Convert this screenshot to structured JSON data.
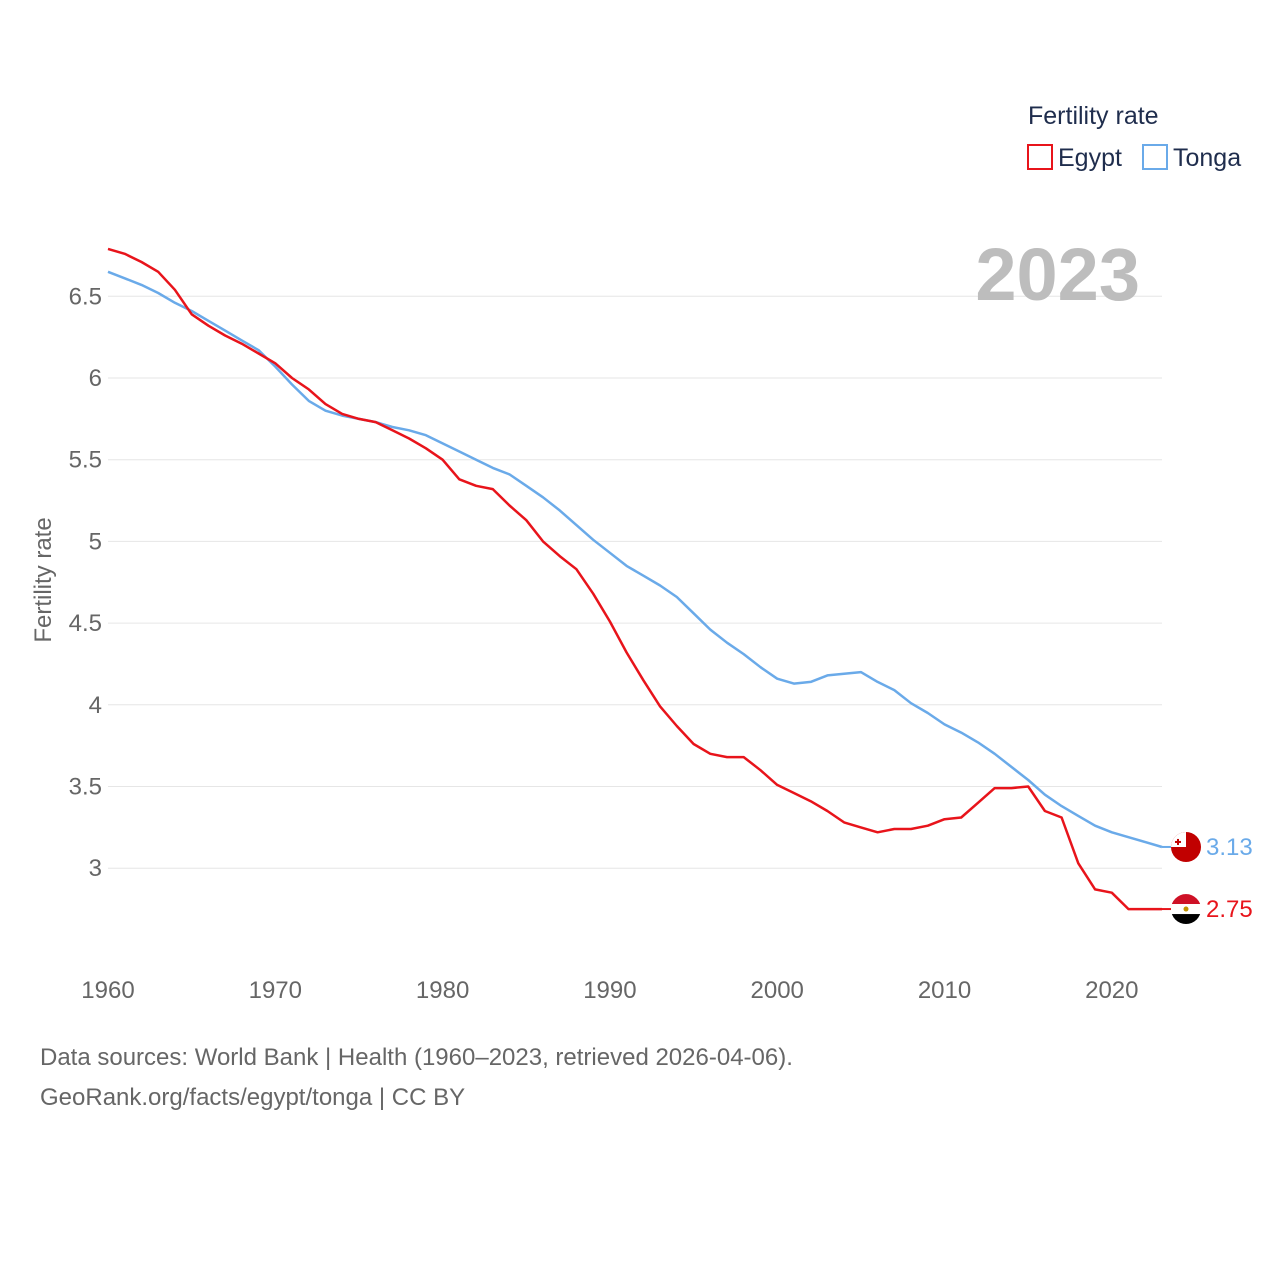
{
  "chart_data": {
    "type": "line",
    "legend_title": "Fertility rate",
    "ylabel": "Fertility rate",
    "xlabel": "",
    "year_label": "2023",
    "xlim": [
      1960,
      2023
    ],
    "ylim": [
      2.5,
      6.8
    ],
    "x_ticks": [
      1960,
      1970,
      1980,
      1990,
      2000,
      2010,
      2020
    ],
    "y_ticks": [
      3,
      3.5,
      4,
      4.5,
      5,
      5.5,
      6,
      6.5
    ],
    "y_tick_labels": [
      "3",
      "3.5",
      "4",
      "4.5",
      "5",
      "5.5",
      "6",
      "6.5"
    ],
    "x_tick_labels": [
      "1960",
      "1970",
      "1980",
      "1990",
      "2000",
      "2010",
      "2020"
    ],
    "years": [
      1960,
      1961,
      1962,
      1963,
      1964,
      1965,
      1966,
      1967,
      1968,
      1969,
      1970,
      1971,
      1972,
      1973,
      1974,
      1975,
      1976,
      1977,
      1978,
      1979,
      1980,
      1981,
      1982,
      1983,
      1984,
      1985,
      1986,
      1987,
      1988,
      1989,
      1990,
      1991,
      1992,
      1993,
      1994,
      1995,
      1996,
      1997,
      1998,
      1999,
      2000,
      2001,
      2002,
      2003,
      2004,
      2005,
      2006,
      2007,
      2008,
      2009,
      2010,
      2011,
      2012,
      2013,
      2014,
      2015,
      2016,
      2017,
      2018,
      2019,
      2020,
      2021,
      2022,
      2023
    ],
    "series": [
      {
        "name": "Egypt",
        "color": "#e8141b",
        "end_label": "2.75",
        "values": [
          6.79,
          6.76,
          6.71,
          6.65,
          6.54,
          6.39,
          6.32,
          6.26,
          6.21,
          6.15,
          6.09,
          6.0,
          5.93,
          5.84,
          5.78,
          5.75,
          5.73,
          5.68,
          5.63,
          5.57,
          5.5,
          5.38,
          5.34,
          5.32,
          5.22,
          5.13,
          5.0,
          4.91,
          4.83,
          4.68,
          4.51,
          4.32,
          4.15,
          3.99,
          3.87,
          3.76,
          3.7,
          3.68,
          3.68,
          3.6,
          3.51,
          3.46,
          3.41,
          3.35,
          3.28,
          3.25,
          3.22,
          3.24,
          3.24,
          3.26,
          3.3,
          3.31,
          3.4,
          3.49,
          3.49,
          3.5,
          3.35,
          3.31,
          3.03,
          2.87,
          2.85,
          2.75,
          2.75,
          2.75
        ]
      },
      {
        "name": "Tonga",
        "color": "#6aaae9",
        "end_label": "3.13",
        "values": [
          6.65,
          6.61,
          6.57,
          6.52,
          6.46,
          6.41,
          6.35,
          6.29,
          6.23,
          6.17,
          6.07,
          5.96,
          5.86,
          5.8,
          5.77,
          5.75,
          5.73,
          5.7,
          5.68,
          5.65,
          5.6,
          5.55,
          5.5,
          5.45,
          5.41,
          5.34,
          5.27,
          5.19,
          5.1,
          5.01,
          4.93,
          4.85,
          4.79,
          4.73,
          4.66,
          4.56,
          4.46,
          4.38,
          4.31,
          4.23,
          4.16,
          4.13,
          4.14,
          4.18,
          4.19,
          4.2,
          4.14,
          4.09,
          4.01,
          3.95,
          3.88,
          3.83,
          3.77,
          3.7,
          3.62,
          3.54,
          3.45,
          3.38,
          3.32,
          3.26,
          3.22,
          3.19,
          3.16,
          3.13
        ]
      }
    ]
  },
  "footer": {
    "line1": "Data sources: World Bank | Health (1960–2023, retrieved 2026-04-06).",
    "line2": "GeoRank.org/facts/egypt/tonga | CC BY"
  },
  "flags": [
    {
      "name": "tonga-flag-icon",
      "colors": [
        "#c10000",
        "#ffffff"
      ]
    },
    {
      "name": "egypt-flag-icon",
      "colors": [
        "#ce1126",
        "#ffffff",
        "#000000"
      ]
    }
  ]
}
